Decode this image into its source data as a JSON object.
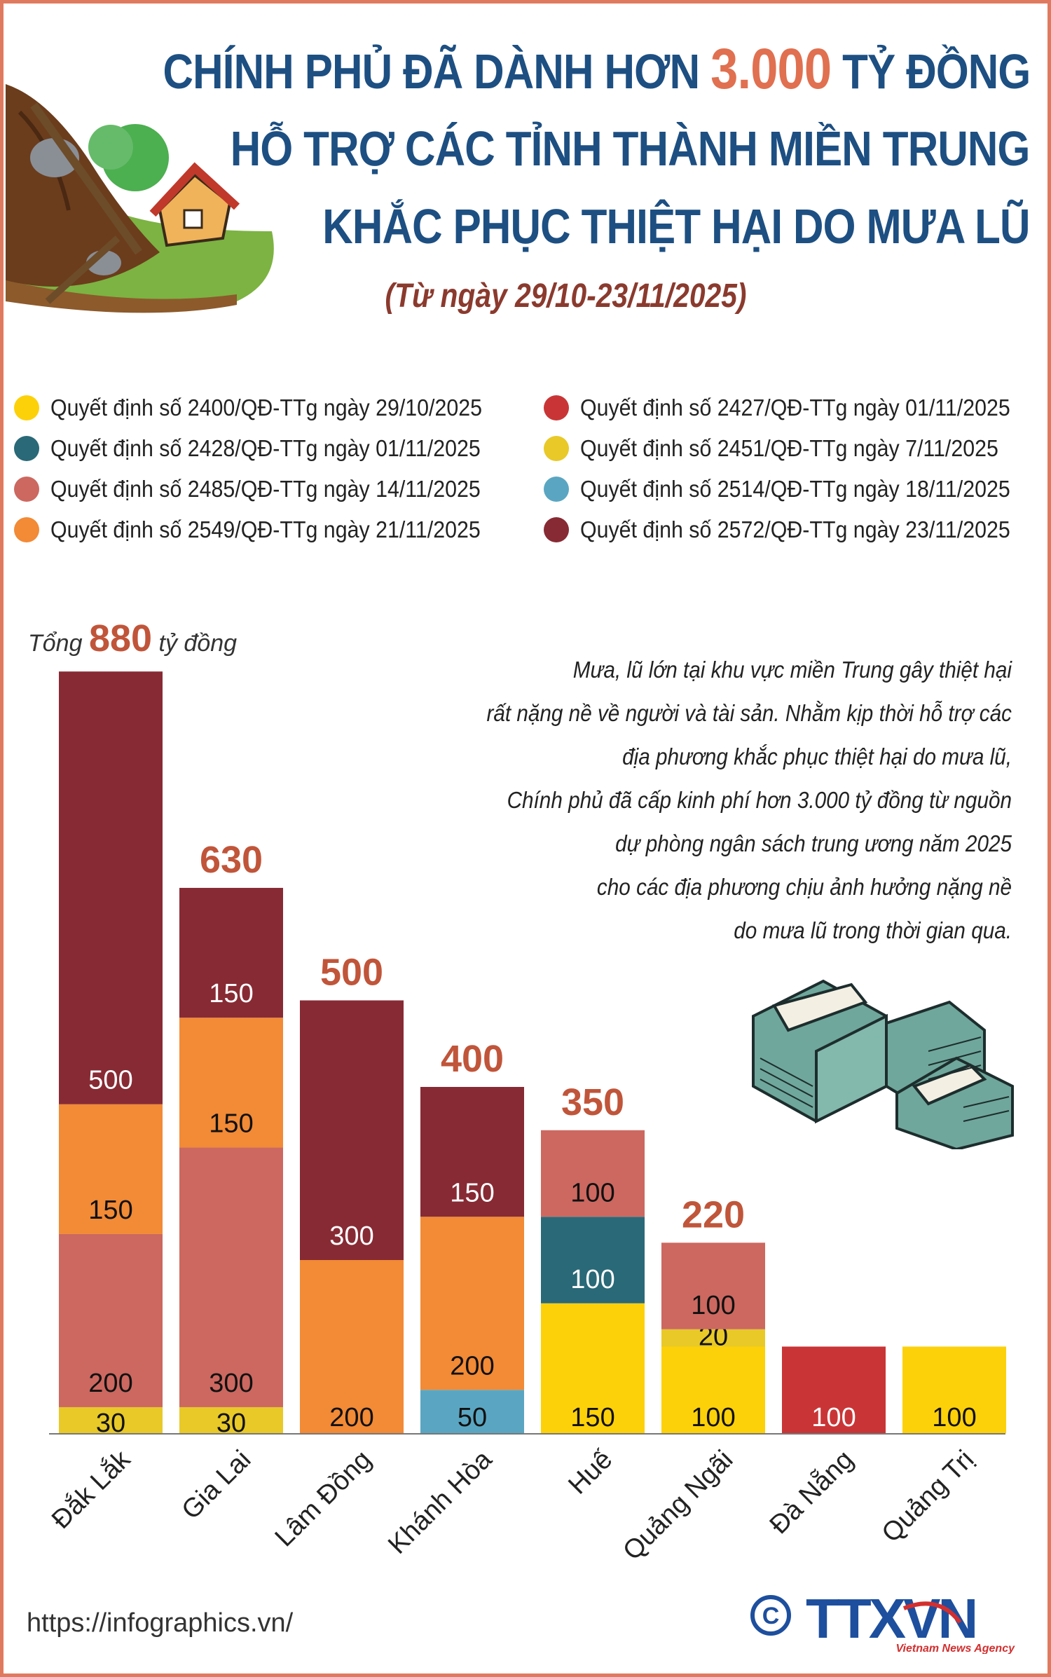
{
  "title": {
    "line1_a": "CHÍNH PHỦ ĐÃ DÀNH HƠN ",
    "line1_hl": "3.000",
    "line1_b": " TỶ ĐỒNG",
    "line2": "HỖ TRỢ CÁC TỈNH THÀNH MIỀN TRUNG",
    "line3": "KHẮC PHỤC THIỆT HẠI DO MƯA LŨ",
    "subtitle": "(Từ ngày 29/10-23/11/2025)"
  },
  "colors": {
    "border": "#e07a5f",
    "title": "#1d4f82",
    "highlight": "#e07050",
    "total": "#c0553a"
  },
  "legend": [
    {
      "label": "Quyết định số 2400/QĐ-TTg ngày 29/10/2025",
      "color": "#fdd10a"
    },
    {
      "label": "Quyết định số 2427/QĐ-TTg ngày 01/11/2025",
      "color": "#c93536"
    },
    {
      "label": "Quyết định số 2428/QĐ-TTg ngày 01/11/2025",
      "color": "#2a6977"
    },
    {
      "label": "Quyết định số 2451/QĐ-TTg ngày 7/11/2025",
      "color": "#e8c928"
    },
    {
      "label": "Quyết định số 2485/QĐ-TTg ngày 14/11/2025",
      "color": "#cc6860"
    },
    {
      "label": "Quyết định số 2514/QĐ-TTg ngày 18/11/2025",
      "color": "#5aa6c2"
    },
    {
      "label": "Quyết định số 2549/QĐ-TTg ngày 21/11/2025",
      "color": "#f28a36"
    },
    {
      "label": "Quyết định số 2572/QĐ-TTg ngày 23/11/2025",
      "color": "#872a34"
    }
  ],
  "total_label": {
    "prefix": "Tổng",
    "value": "880",
    "suffix": "tỷ đồng"
  },
  "paragraph": [
    "Mưa, lũ lớn tại khu vực miền Trung gây thiệt hại",
    "rất nặng nề về người và tài sản. Nhằm kịp thời hỗ trợ các",
    "địa phương khắc phục thiệt hại do mưa lũ,",
    "Chính phủ đã cấp kinh phí hơn 3.000 tỷ đồng từ nguồn",
    "dự phòng ngân sách trung ương năm 2025",
    "cho các địa phương chịu ảnh hưởng nặng nề",
    "do mưa lũ trong thời gian qua."
  ],
  "chart_data": {
    "type": "bar",
    "stacked": true,
    "unit": "tỷ đồng",
    "categories": [
      "Đắk Lắk",
      "Gia Lai",
      "Lâm Đồng",
      "Khánh Hòa",
      "Huế",
      "Quảng Ngãi",
      "Đà Nẵng",
      "Quảng Trị"
    ],
    "totals": [
      "880",
      "630",
      "500",
      "400",
      "350",
      "220",
      "100",
      "100"
    ],
    "series": [
      {
        "name": "Quyết định số 2400/QĐ-TTg ngày 29/10/2025",
        "values": [
          0,
          0,
          0,
          0,
          150,
          100,
          0,
          100
        ]
      },
      {
        "name": "Quyết định số 2427/QĐ-TTg ngày 01/11/2025",
        "values": [
          0,
          0,
          0,
          0,
          0,
          0,
          100,
          0
        ]
      },
      {
        "name": "Quyết định số 2451/QĐ-TTg ngày 7/11/2025",
        "values": [
          30,
          30,
          0,
          0,
          0,
          20,
          0,
          0
        ]
      },
      {
        "name": "Quyết định số 2514/QĐ-TTg ngày 18/11/2025",
        "values": [
          0,
          0,
          0,
          50,
          0,
          0,
          0,
          0
        ]
      },
      {
        "name": "Quyết định số 2428/QĐ-TTg ngày 01/11/2025",
        "values": [
          0,
          0,
          0,
          0,
          100,
          0,
          0,
          0
        ]
      },
      {
        "name": "Quyết định số 2485/QĐ-TTg ngày 14/11/2025",
        "values": [
          200,
          300,
          0,
          0,
          100,
          100,
          0,
          0
        ]
      },
      {
        "name": "Quyết định số 2549/QĐ-TTg ngày 21/11/2025",
        "values": [
          150,
          150,
          200,
          200,
          0,
          0,
          0,
          0
        ]
      },
      {
        "name": "Quyết định số 2572/QĐ-TTg ngày 23/11/2025",
        "values": [
          500,
          150,
          300,
          150,
          0,
          0,
          0,
          0
        ]
      }
    ],
    "series_colors": [
      "#fdd10a",
      "#c93536",
      "#e8c928",
      "#5aa6c2",
      "#2a6977",
      "#cc6860",
      "#f28a36",
      "#872a34"
    ],
    "label_colors": [
      "#111",
      "#fff",
      "#111",
      "#111",
      "#fff",
      "#111",
      "#111",
      "#fff"
    ]
  },
  "footer": {
    "url": "https://infographics.vn/",
    "logo_text": "TTXVN",
    "logo_sub": "Vietnam News Agency",
    "copyright": "©"
  }
}
